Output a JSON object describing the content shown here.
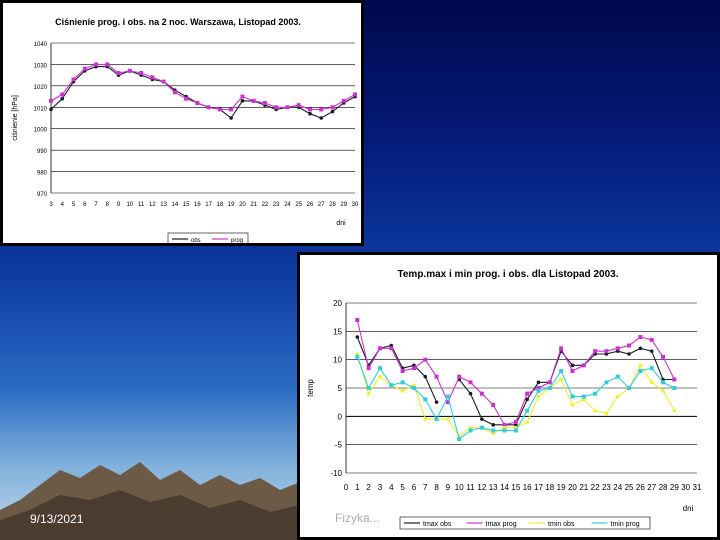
{
  "footer": {
    "date": "9/13/2021",
    "center": "Fizyka..."
  },
  "chart_data": [
    {
      "type": "line",
      "title": "Ciśnienie prog. i obs. na 2 noc. Warszawa, Listopad 2003.",
      "xlabel": "dni",
      "ylabel": "ciśnienie [hPa]",
      "ylim": [
        970,
        1040
      ],
      "y_ticks": [
        "970",
        "980",
        "990",
        "1000",
        "1010",
        "1020",
        "1030",
        "1040"
      ],
      "x": [
        3,
        4,
        5,
        6,
        7,
        8,
        9,
        10,
        11,
        12,
        13,
        14,
        15,
        16,
        17,
        18,
        19,
        20,
        21,
        22,
        23,
        24,
        25,
        26,
        27,
        28,
        29,
        30
      ],
      "x_labels": [
        "3",
        "4",
        "5",
        "6",
        "7",
        "8",
        "9",
        "10",
        "11",
        "12",
        "13",
        "14",
        "15",
        "16",
        "17",
        "18",
        "19",
        "20",
        "21",
        "22",
        "23",
        "24",
        "25",
        "26",
        "27",
        "28",
        "29",
        "30"
      ],
      "grid": true,
      "legend": "bottom",
      "series": [
        {
          "name": "obs",
          "color": "#1a1a2e",
          "values": [
            1009,
            1014,
            1022,
            1027,
            1029,
            1029,
            1025,
            1027,
            1025,
            1023,
            1022,
            1018,
            1015,
            1012,
            1010,
            1009,
            1005,
            1013,
            1013,
            1011,
            1009,
            1010,
            1010,
            1007,
            1005,
            1008,
            1012,
            1015
          ]
        },
        {
          "name": "prog",
          "color": "#cc33cc",
          "values": [
            1013,
            1016,
            1023,
            1028,
            1030,
            1030,
            1026,
            1027,
            1026,
            1024,
            1022,
            1017,
            1014,
            1012,
            1010,
            1009,
            1009,
            1015,
            1013,
            1012,
            1010,
            1010,
            1011,
            1009,
            1009,
            1010,
            1013,
            1016
          ]
        }
      ]
    },
    {
      "type": "line",
      "title": "Temp.max i min prog. i obs. dla Listopad 2003.",
      "xlabel": "dni",
      "ylabel": "temp",
      "ylim": [
        -10,
        20
      ],
      "y_ticks": [
        "20",
        "15",
        "10",
        "5",
        "0",
        "-5",
        "-10"
      ],
      "x": [
        0,
        1,
        2,
        3,
        4,
        5,
        6,
        7,
        8,
        9,
        10,
        11,
        12,
        13,
        14,
        15,
        16,
        17,
        18,
        19,
        20,
        21,
        22,
        23,
        24,
        25,
        26,
        27,
        28,
        29,
        30,
        31
      ],
      "x_labels": [
        "0",
        "1",
        "2",
        "3",
        "4",
        "5",
        "6",
        "7",
        "8",
        "9",
        "10",
        "11",
        "12",
        "13",
        "14",
        "15",
        "16",
        "17",
        "18",
        "19",
        "20",
        "21",
        "22",
        "23",
        "24",
        "25",
        "26",
        "27",
        "28",
        "29",
        "30",
        "31"
      ],
      "grid": true,
      "legend": "bottom",
      "series": [
        {
          "name": "tmax obs",
          "color": "#1a1a2e",
          "values": [
            null,
            14,
            9,
            12,
            12.5,
            8.5,
            9,
            7,
            2.5,
            null,
            6.5,
            4,
            -0.5,
            -1.5,
            -1.5,
            -1.5,
            3,
            6,
            6,
            11.5,
            9,
            9,
            11,
            11,
            11.5,
            11,
            12,
            11.5,
            6.5,
            6.5,
            null,
            null
          ]
        },
        {
          "name": "tmax prog",
          "color": "#cc33cc",
          "values": [
            null,
            17,
            8.5,
            12,
            12,
            8,
            8.5,
            10,
            7,
            2.5,
            7,
            6,
            4,
            2,
            -1.5,
            -1,
            4,
            5,
            6,
            12,
            8,
            9,
            11.5,
            11.5,
            12,
            12.5,
            14,
            13.5,
            10.5,
            6.5,
            null,
            null
          ]
        },
        {
          "name": "tmin obs",
          "color": "#eeee33",
          "values": [
            null,
            11,
            4,
            7,
            5.5,
            4.5,
            5.5,
            -0.5,
            -0.5,
            -0.5,
            -3.5,
            -2,
            -2,
            -3,
            -2,
            -2,
            -1,
            3.5,
            5,
            6.5,
            2,
            3,
            1,
            0.5,
            3.5,
            5,
            9,
            6,
            4.5,
            1,
            null,
            null
          ]
        },
        {
          "name": "tmin prog",
          "color": "#33ccdd",
          "values": [
            null,
            10.5,
            5,
            8.5,
            5.5,
            6,
            5,
            3,
            -0.5,
            3.5,
            -4,
            -2.5,
            -2,
            -2.5,
            -2.5,
            -2.5,
            1,
            4.5,
            5,
            8,
            3.5,
            3.5,
            4,
            6,
            7,
            5,
            8,
            8.5,
            6,
            5,
            null,
            null
          ]
        }
      ]
    }
  ]
}
